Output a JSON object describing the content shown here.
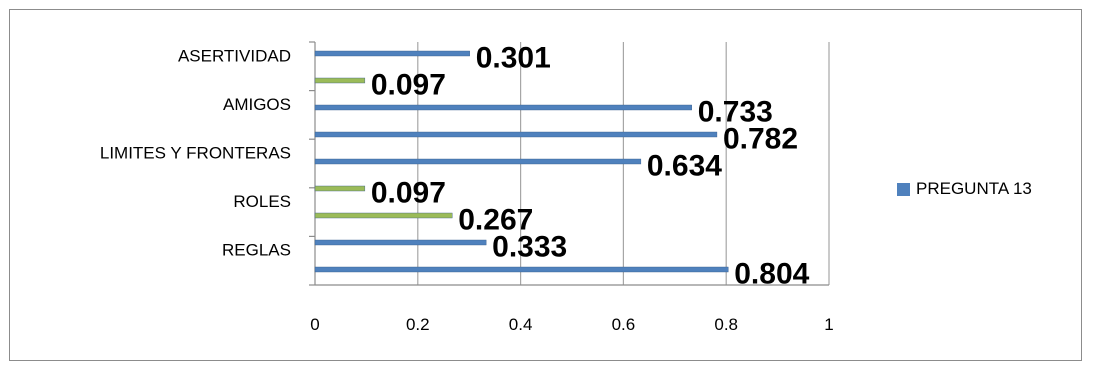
{
  "colors": {
    "primary": "#4f81bd",
    "secondary": "#9bbb59",
    "grid": "#a6a6a6"
  },
  "legend": {
    "label": "PREGUNTA 13",
    "position": "right"
  },
  "chart_data": {
    "type": "bar",
    "orientation": "horizontal",
    "title": "",
    "xlabel": "",
    "ylabel": "",
    "xlim": [
      0,
      1
    ],
    "x_ticks": [
      "0",
      "0.2",
      "0.4",
      "0.6",
      "0.8",
      "1"
    ],
    "grid": true,
    "category_labels": [
      "REGLAS",
      "ROLES",
      "LIMITES Y FRONTERAS",
      "AMIGOS",
      "ASERTIVIDAD"
    ],
    "series": [
      {
        "name": "PREGUNTA 13",
        "bars": [
          {
            "value": 0.804,
            "label": "0.804",
            "color": "#4f81bd"
          },
          {
            "value": 0.333,
            "label": "0.333",
            "color": "#4f81bd"
          },
          {
            "value": 0.267,
            "label": "0.267",
            "color": "#9bbb59"
          },
          {
            "value": 0.097,
            "label": "0.097",
            "color": "#9bbb59"
          },
          {
            "value": 0.634,
            "label": "0.634",
            "color": "#4f81bd"
          },
          {
            "value": 0.782,
            "label": "0.782",
            "color": "#4f81bd"
          },
          {
            "value": 0.733,
            "label": "0.733",
            "color": "#4f81bd"
          },
          {
            "value": 0.097,
            "label": "0.097",
            "color": "#9bbb59"
          },
          {
            "value": 0.301,
            "label": "0.301",
            "color": "#4f81bd"
          }
        ]
      }
    ]
  }
}
